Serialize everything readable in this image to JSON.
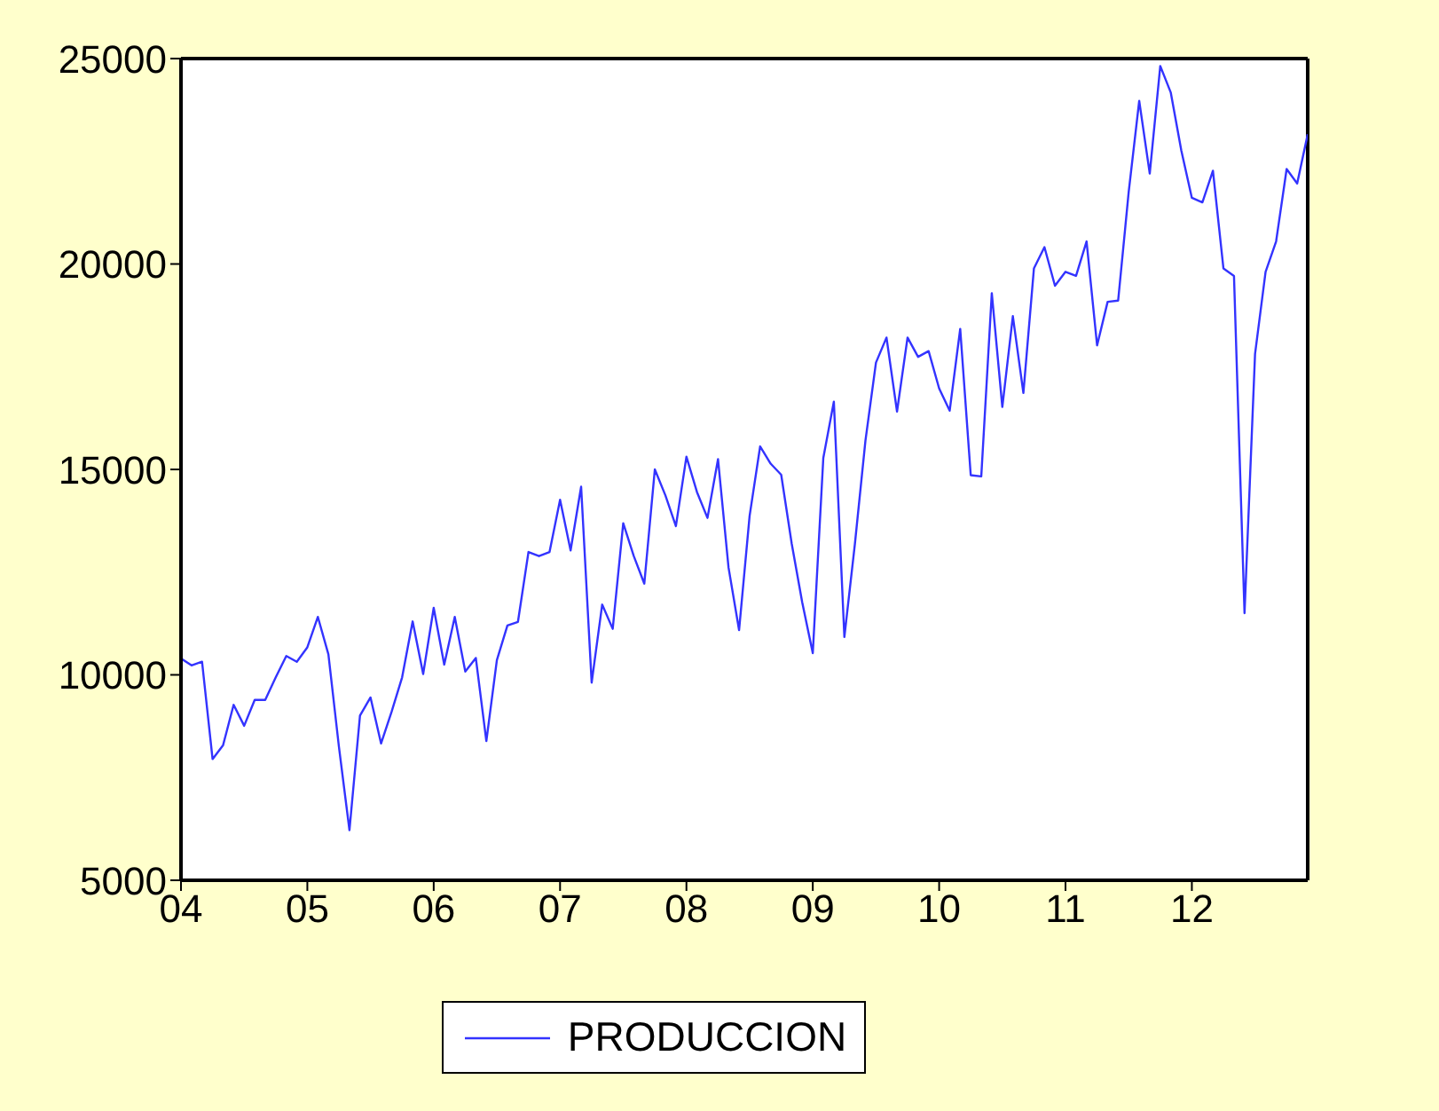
{
  "chart_data": {
    "type": "line",
    "x": [
      "2004-01",
      "2004-02",
      "2004-03",
      "2004-04",
      "2004-05",
      "2004-06",
      "2004-07",
      "2004-08",
      "2004-09",
      "2004-10",
      "2004-11",
      "2004-12",
      "2005-01",
      "2005-02",
      "2005-03",
      "2005-04",
      "2005-05",
      "2005-06",
      "2005-07",
      "2005-08",
      "2005-09",
      "2005-10",
      "2005-11",
      "2005-12",
      "2006-01",
      "2006-02",
      "2006-03",
      "2006-04",
      "2006-05",
      "2006-06",
      "2006-07",
      "2006-08",
      "2006-09",
      "2006-10",
      "2006-11",
      "2006-12",
      "2007-01",
      "2007-02",
      "2007-03",
      "2007-04",
      "2007-05",
      "2007-06",
      "2007-07",
      "2007-08",
      "2007-09",
      "2007-10",
      "2007-11",
      "2007-12",
      "2008-01",
      "2008-02",
      "2008-03",
      "2008-04",
      "2008-05",
      "2008-06",
      "2008-07",
      "2008-08",
      "2008-09",
      "2008-10",
      "2008-11",
      "2008-12",
      "2009-01",
      "2009-02",
      "2009-03",
      "2009-04",
      "2009-05",
      "2009-06",
      "2009-07",
      "2009-08",
      "2009-09",
      "2009-10",
      "2009-11",
      "2009-12",
      "2010-01",
      "2010-02",
      "2010-03",
      "2010-04",
      "2010-05",
      "2010-06",
      "2010-07",
      "2010-08",
      "2010-09",
      "2010-10",
      "2010-11",
      "2010-12",
      "2011-01",
      "2011-02",
      "2011-03",
      "2011-04",
      "2011-05",
      "2011-06",
      "2011-07",
      "2011-08",
      "2011-09",
      "2011-10",
      "2011-11",
      "2011-12",
      "2012-01",
      "2012-02",
      "2012-03",
      "2012-04",
      "2012-05",
      "2012-06",
      "2012-07",
      "2012-08",
      "2012-09",
      "2012-10",
      "2012-11",
      "2012-12"
    ],
    "series": [
      {
        "name": "PRODUCCION",
        "color": "#3333ff",
        "values": [
          10400,
          10230,
          10320,
          7950,
          8290,
          9270,
          8760,
          9390,
          9390,
          9940,
          10460,
          10320,
          10670,
          11410,
          10500,
          8250,
          6220,
          9010,
          9450,
          8330,
          9100,
          9940,
          11300,
          10020,
          11630,
          10250,
          11410,
          10080,
          10410,
          8390,
          10360,
          11200,
          11290,
          12990,
          12890,
          12990,
          14260,
          13030,
          14580,
          9810,
          11710,
          11120,
          13690,
          12890,
          12220,
          15000,
          14370,
          13620,
          15310,
          14450,
          13820,
          15250,
          12610,
          11090,
          13870,
          15560,
          15140,
          14870,
          13190,
          11760,
          10530,
          15280,
          16650,
          10920,
          13190,
          15700,
          17600,
          18210,
          16410,
          18210,
          17740,
          17880,
          16970,
          16430,
          18420,
          14860,
          14830,
          19290,
          16520,
          18730,
          16860,
          19890,
          20410,
          19470,
          19810,
          19710,
          20550,
          18020,
          19080,
          19110,
          21750,
          23970,
          22200,
          24820,
          24170,
          22760,
          21610,
          21500,
          22270,
          19890,
          19710,
          11500,
          17810,
          19810,
          20550,
          22310,
          21960,
          23160
        ]
      }
    ],
    "xlim": [
      "2004-01",
      "2012-12"
    ],
    "xticks": [
      {
        "value": "2004-01",
        "label": "04"
      },
      {
        "value": "2005-01",
        "label": "05"
      },
      {
        "value": "2006-01",
        "label": "06"
      },
      {
        "value": "2007-01",
        "label": "07"
      },
      {
        "value": "2008-01",
        "label": "08"
      },
      {
        "value": "2009-01",
        "label": "09"
      },
      {
        "value": "2010-01",
        "label": "10"
      },
      {
        "value": "2011-01",
        "label": "11"
      },
      {
        "value": "2012-01",
        "label": "12"
      }
    ],
    "ylim": [
      5000,
      25000
    ],
    "yticks": [
      5000,
      10000,
      15000,
      20000,
      25000
    ],
    "grid": false,
    "legend": "bottom",
    "marker": "none",
    "line_style": "solid"
  }
}
